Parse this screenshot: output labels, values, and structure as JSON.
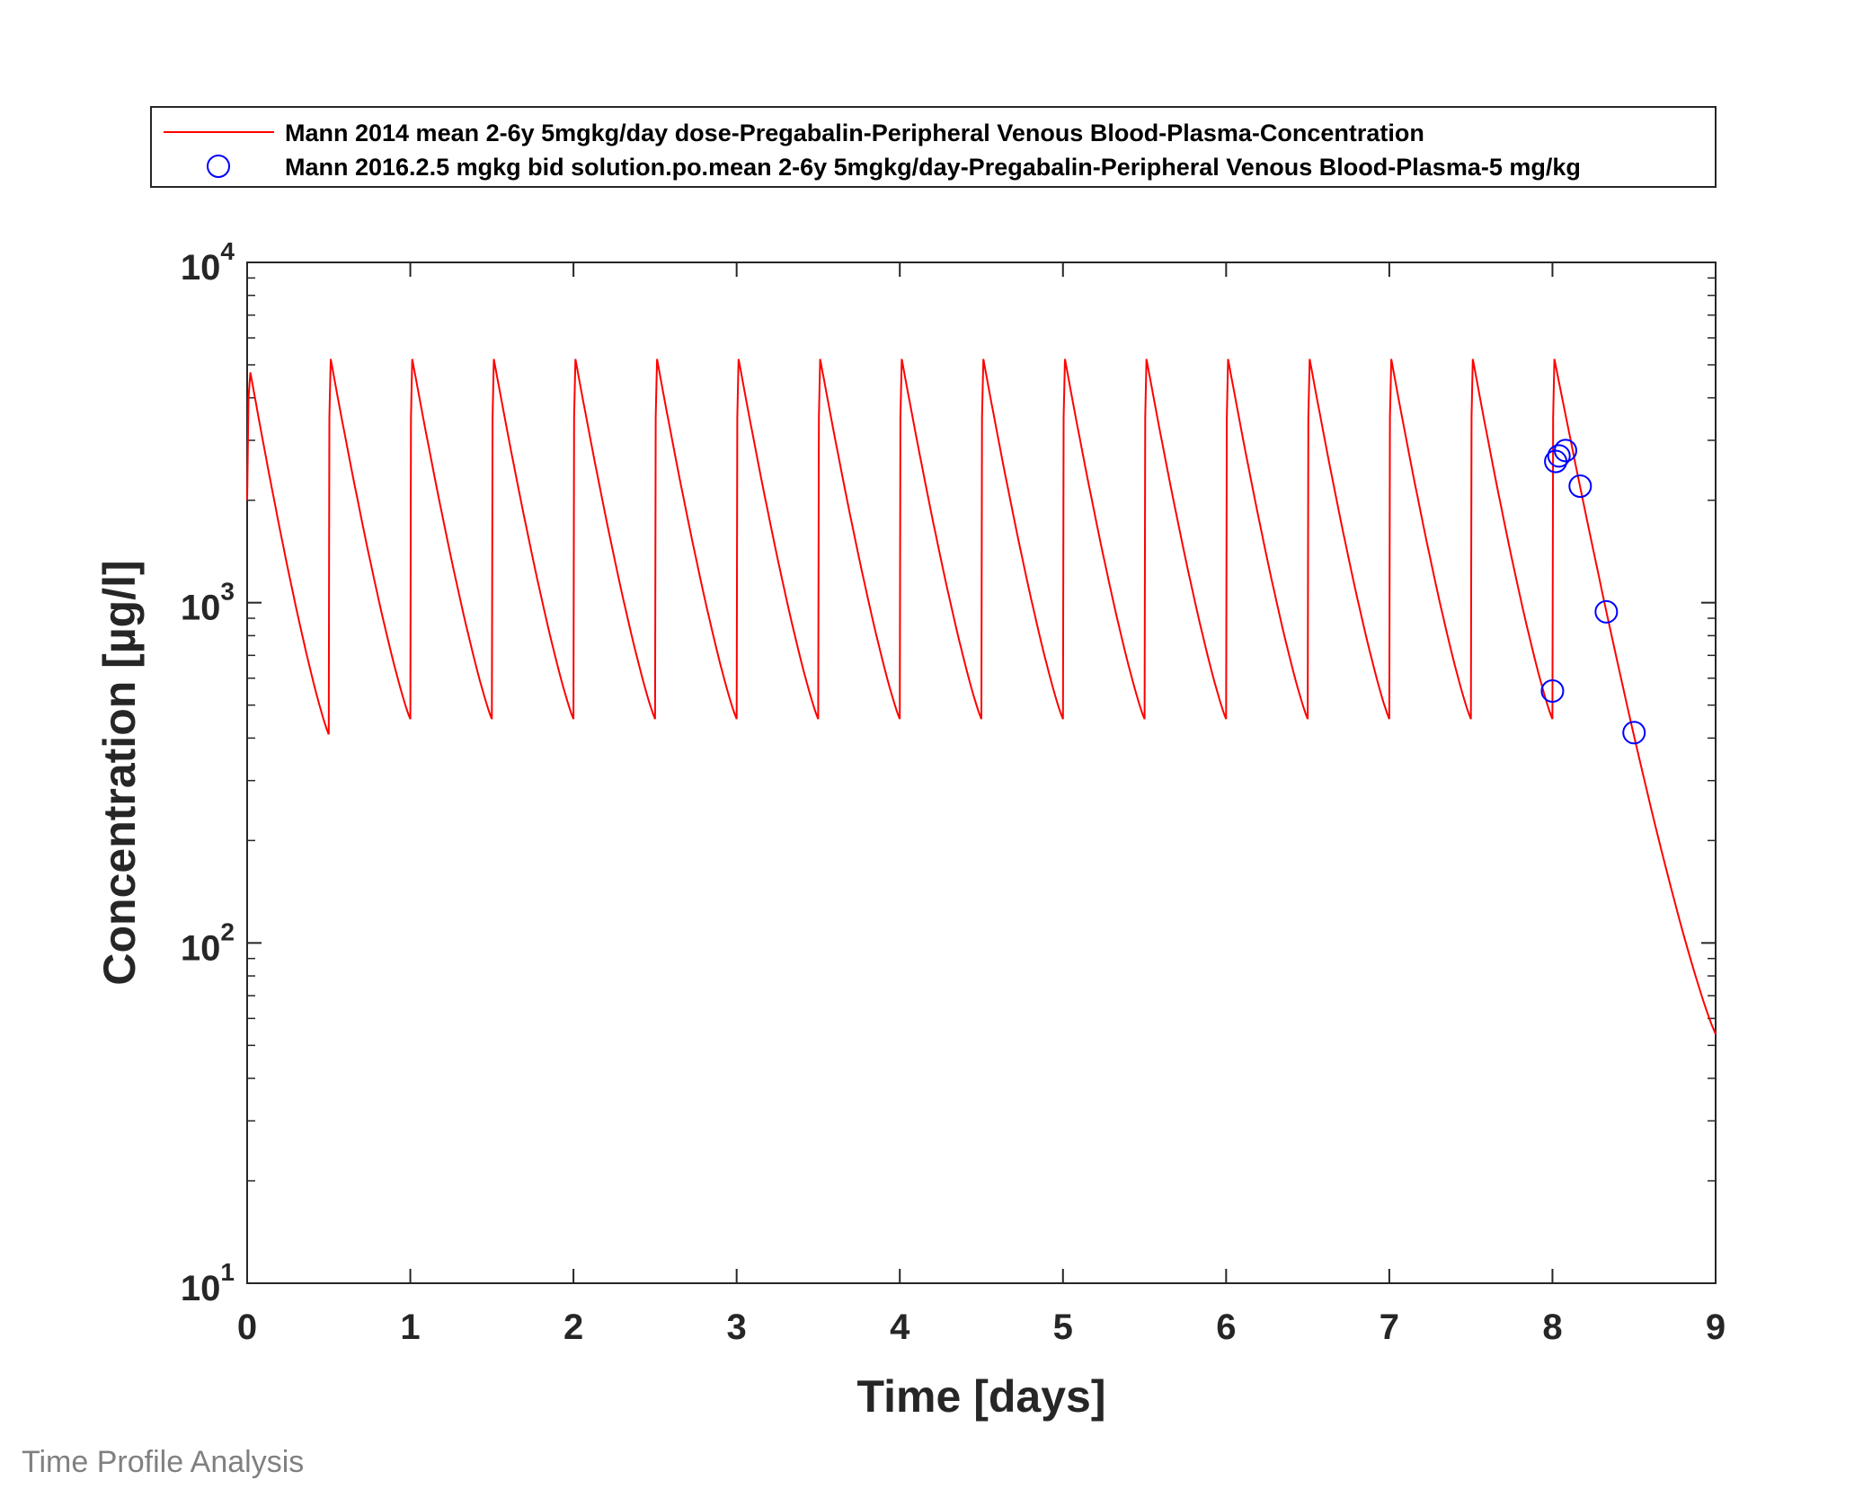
{
  "footer_text": "Time Profile Analysis",
  "colors": {
    "simulation": "#ff0000",
    "observed": "#0000ff",
    "axis": "#262626"
  },
  "chart_data": {
    "type": "line",
    "title": "",
    "xlabel": "Time [days]",
    "ylabel": "Concentration [µg/l]",
    "xlim": [
      0,
      9
    ],
    "ylim": [
      10,
      10000
    ],
    "yscale": "log",
    "grid": false,
    "legend_position": "top",
    "x_ticks": [
      "0",
      "1",
      "2",
      "3",
      "4",
      "5",
      "6",
      "7",
      "8",
      "9"
    ],
    "y_ticks": [
      {
        "base": "10",
        "exp": "1",
        "value": 10
      },
      {
        "base": "10",
        "exp": "2",
        "value": 100
      },
      {
        "base": "10",
        "exp": "3",
        "value": 1000
      },
      {
        "base": "10",
        "exp": "4",
        "value": 10000
      }
    ],
    "series": [
      {
        "name": "Mann 2014 mean 2-6y 5mgkg/day dose-Pregabalin-Peripheral Venous Blood-Plasma-Concentration",
        "style": "line",
        "color": "#ff0000",
        "dose_interval_days": 0.5,
        "last_dose_day": 8,
        "peak_first": 4750,
        "peak": 5200,
        "trough_first": 410,
        "trough": 455,
        "end_value": 54,
        "x": [
          0,
          0.5,
          0.5,
          1,
          1,
          1.5,
          1.5,
          2,
          2,
          2.5,
          2.5,
          3,
          3,
          3.5,
          3.5,
          4,
          4,
          4.5,
          4.5,
          5,
          5,
          5.5,
          5.5,
          6,
          6,
          6.5,
          6.5,
          7,
          7,
          7.5,
          7.5,
          8,
          8,
          9
        ],
        "y": [
          4750,
          410,
          5200,
          455,
          5200,
          455,
          5200,
          455,
          5200,
          455,
          5200,
          455,
          5200,
          455,
          5200,
          455,
          5200,
          455,
          5200,
          455,
          5200,
          455,
          5200,
          455,
          5200,
          455,
          5200,
          455,
          5200,
          455,
          5200,
          455,
          5200,
          54
        ]
      },
      {
        "name": "Mann 2016.2.5 mgkg bid solution.po.mean 2-6y 5mgkg/day-Pregabalin-Peripheral Venous Blood-Plasma-5 mg/kg",
        "style": "scatter",
        "color": "#0000ff",
        "x": [
          8.0,
          8.02,
          8.04,
          8.08,
          8.17,
          8.33,
          8.5
        ],
        "y": [
          550,
          2600,
          2700,
          2800,
          2200,
          940,
          415
        ]
      }
    ]
  }
}
